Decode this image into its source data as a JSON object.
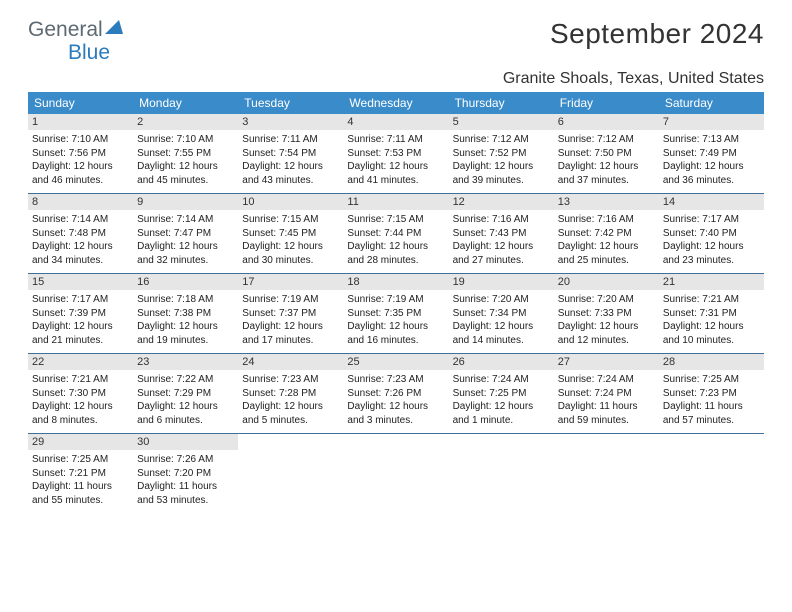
{
  "brand": {
    "word1": "General",
    "word2": "Blue",
    "tri_color": "#2b7bbd",
    "text_color": "#5d6a74"
  },
  "header": {
    "title": "September 2024",
    "location": "Granite Shoals, Texas, United States",
    "title_color": "#333333",
    "title_fontsize": 28,
    "location_fontsize": 16
  },
  "calendar": {
    "header_bg": "#3a8bc9",
    "header_fg": "#ffffff",
    "row_border": "#3f6f9a",
    "daynum_bg": "#e6e6e6",
    "cell_fontsize": 10,
    "daynum_fontsize": 11,
    "weekdays": [
      "Sunday",
      "Monday",
      "Tuesday",
      "Wednesday",
      "Thursday",
      "Friday",
      "Saturday"
    ],
    "weeks": [
      [
        {
          "day": "1",
          "sunrise": "Sunrise: 7:10 AM",
          "sunset": "Sunset: 7:56 PM",
          "daylight1": "Daylight: 12 hours",
          "daylight2": "and 46 minutes."
        },
        {
          "day": "2",
          "sunrise": "Sunrise: 7:10 AM",
          "sunset": "Sunset: 7:55 PM",
          "daylight1": "Daylight: 12 hours",
          "daylight2": "and 45 minutes."
        },
        {
          "day": "3",
          "sunrise": "Sunrise: 7:11 AM",
          "sunset": "Sunset: 7:54 PM",
          "daylight1": "Daylight: 12 hours",
          "daylight2": "and 43 minutes."
        },
        {
          "day": "4",
          "sunrise": "Sunrise: 7:11 AM",
          "sunset": "Sunset: 7:53 PM",
          "daylight1": "Daylight: 12 hours",
          "daylight2": "and 41 minutes."
        },
        {
          "day": "5",
          "sunrise": "Sunrise: 7:12 AM",
          "sunset": "Sunset: 7:52 PM",
          "daylight1": "Daylight: 12 hours",
          "daylight2": "and 39 minutes."
        },
        {
          "day": "6",
          "sunrise": "Sunrise: 7:12 AM",
          "sunset": "Sunset: 7:50 PM",
          "daylight1": "Daylight: 12 hours",
          "daylight2": "and 37 minutes."
        },
        {
          "day": "7",
          "sunrise": "Sunrise: 7:13 AM",
          "sunset": "Sunset: 7:49 PM",
          "daylight1": "Daylight: 12 hours",
          "daylight2": "and 36 minutes."
        }
      ],
      [
        {
          "day": "8",
          "sunrise": "Sunrise: 7:14 AM",
          "sunset": "Sunset: 7:48 PM",
          "daylight1": "Daylight: 12 hours",
          "daylight2": "and 34 minutes."
        },
        {
          "day": "9",
          "sunrise": "Sunrise: 7:14 AM",
          "sunset": "Sunset: 7:47 PM",
          "daylight1": "Daylight: 12 hours",
          "daylight2": "and 32 minutes."
        },
        {
          "day": "10",
          "sunrise": "Sunrise: 7:15 AM",
          "sunset": "Sunset: 7:45 PM",
          "daylight1": "Daylight: 12 hours",
          "daylight2": "and 30 minutes."
        },
        {
          "day": "11",
          "sunrise": "Sunrise: 7:15 AM",
          "sunset": "Sunset: 7:44 PM",
          "daylight1": "Daylight: 12 hours",
          "daylight2": "and 28 minutes."
        },
        {
          "day": "12",
          "sunrise": "Sunrise: 7:16 AM",
          "sunset": "Sunset: 7:43 PM",
          "daylight1": "Daylight: 12 hours",
          "daylight2": "and 27 minutes."
        },
        {
          "day": "13",
          "sunrise": "Sunrise: 7:16 AM",
          "sunset": "Sunset: 7:42 PM",
          "daylight1": "Daylight: 12 hours",
          "daylight2": "and 25 minutes."
        },
        {
          "day": "14",
          "sunrise": "Sunrise: 7:17 AM",
          "sunset": "Sunset: 7:40 PM",
          "daylight1": "Daylight: 12 hours",
          "daylight2": "and 23 minutes."
        }
      ],
      [
        {
          "day": "15",
          "sunrise": "Sunrise: 7:17 AM",
          "sunset": "Sunset: 7:39 PM",
          "daylight1": "Daylight: 12 hours",
          "daylight2": "and 21 minutes."
        },
        {
          "day": "16",
          "sunrise": "Sunrise: 7:18 AM",
          "sunset": "Sunset: 7:38 PM",
          "daylight1": "Daylight: 12 hours",
          "daylight2": "and 19 minutes."
        },
        {
          "day": "17",
          "sunrise": "Sunrise: 7:19 AM",
          "sunset": "Sunset: 7:37 PM",
          "daylight1": "Daylight: 12 hours",
          "daylight2": "and 17 minutes."
        },
        {
          "day": "18",
          "sunrise": "Sunrise: 7:19 AM",
          "sunset": "Sunset: 7:35 PM",
          "daylight1": "Daylight: 12 hours",
          "daylight2": "and 16 minutes."
        },
        {
          "day": "19",
          "sunrise": "Sunrise: 7:20 AM",
          "sunset": "Sunset: 7:34 PM",
          "daylight1": "Daylight: 12 hours",
          "daylight2": "and 14 minutes."
        },
        {
          "day": "20",
          "sunrise": "Sunrise: 7:20 AM",
          "sunset": "Sunset: 7:33 PM",
          "daylight1": "Daylight: 12 hours",
          "daylight2": "and 12 minutes."
        },
        {
          "day": "21",
          "sunrise": "Sunrise: 7:21 AM",
          "sunset": "Sunset: 7:31 PM",
          "daylight1": "Daylight: 12 hours",
          "daylight2": "and 10 minutes."
        }
      ],
      [
        {
          "day": "22",
          "sunrise": "Sunrise: 7:21 AM",
          "sunset": "Sunset: 7:30 PM",
          "daylight1": "Daylight: 12 hours",
          "daylight2": "and 8 minutes."
        },
        {
          "day": "23",
          "sunrise": "Sunrise: 7:22 AM",
          "sunset": "Sunset: 7:29 PM",
          "daylight1": "Daylight: 12 hours",
          "daylight2": "and 6 minutes."
        },
        {
          "day": "24",
          "sunrise": "Sunrise: 7:23 AM",
          "sunset": "Sunset: 7:28 PM",
          "daylight1": "Daylight: 12 hours",
          "daylight2": "and 5 minutes."
        },
        {
          "day": "25",
          "sunrise": "Sunrise: 7:23 AM",
          "sunset": "Sunset: 7:26 PM",
          "daylight1": "Daylight: 12 hours",
          "daylight2": "and 3 minutes."
        },
        {
          "day": "26",
          "sunrise": "Sunrise: 7:24 AM",
          "sunset": "Sunset: 7:25 PM",
          "daylight1": "Daylight: 12 hours",
          "daylight2": "and 1 minute."
        },
        {
          "day": "27",
          "sunrise": "Sunrise: 7:24 AM",
          "sunset": "Sunset: 7:24 PM",
          "daylight1": "Daylight: 11 hours",
          "daylight2": "and 59 minutes."
        },
        {
          "day": "28",
          "sunrise": "Sunrise: 7:25 AM",
          "sunset": "Sunset: 7:23 PM",
          "daylight1": "Daylight: 11 hours",
          "daylight2": "and 57 minutes."
        }
      ],
      [
        {
          "day": "29",
          "sunrise": "Sunrise: 7:25 AM",
          "sunset": "Sunset: 7:21 PM",
          "daylight1": "Daylight: 11 hours",
          "daylight2": "and 55 minutes."
        },
        {
          "day": "30",
          "sunrise": "Sunrise: 7:26 AM",
          "sunset": "Sunset: 7:20 PM",
          "daylight1": "Daylight: 11 hours",
          "daylight2": "and 53 minutes."
        },
        null,
        null,
        null,
        null,
        null
      ]
    ]
  }
}
